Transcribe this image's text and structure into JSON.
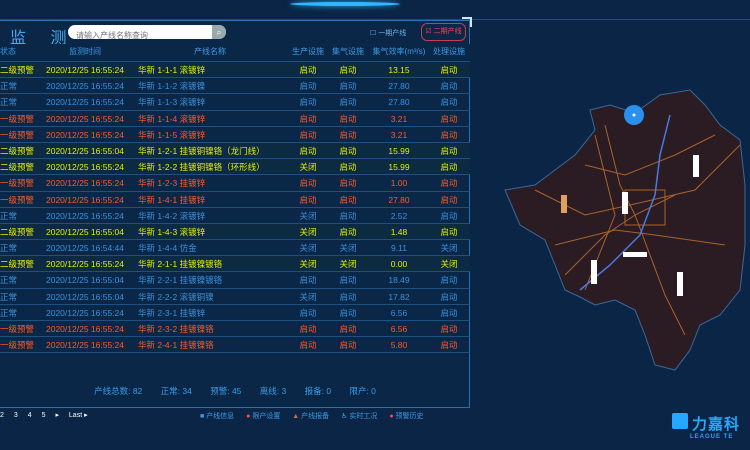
{
  "panel": {
    "title": "监 测",
    "search_placeholder": "请输入产线名称查询",
    "checkbox1": "一期产线",
    "checkbox2": "二期产线"
  },
  "columns": [
    "状态",
    "监测时间",
    "产线名称",
    "生产设施",
    "集气设施",
    "集气效率(m³/s)",
    "处理设施"
  ],
  "rows": [
    {
      "level": "yellow",
      "status": "二级预警",
      "time": "2020/12/25 16:55:24",
      "name": "华新 1-1-1 滚镀锌",
      "prod": "启动",
      "gas": "启动",
      "eff": "13.15",
      "treat": "启动"
    },
    {
      "level": "blue",
      "status": "正常",
      "time": "2020/12/25 16:55:24",
      "name": "华新 1-1-2 滚镀镍",
      "prod": "启动",
      "gas": "启动",
      "eff": "27.80",
      "treat": "启动"
    },
    {
      "level": "blue",
      "status": "正常",
      "time": "2020/12/25 16:55:24",
      "name": "华新 1-1-3 滚镀锌",
      "prod": "启动",
      "gas": "启动",
      "eff": "27.80",
      "treat": "启动"
    },
    {
      "level": "red",
      "status": "一级预警",
      "time": "2020/12/25 16:55:24",
      "name": "华新 1-1-4 滚镀锌",
      "prod": "启动",
      "gas": "启动",
      "eff": "3.21",
      "treat": "启动"
    },
    {
      "level": "red",
      "status": "一级预警",
      "time": "2020/12/25 16:55:24",
      "name": "华新 1-1-5 滚镀锌",
      "prod": "启动",
      "gas": "启动",
      "eff": "3.21",
      "treat": "启动"
    },
    {
      "level": "yellow",
      "status": "二级预警",
      "time": "2020/12/25 16:55:04",
      "name": "华新 1-2-1 挂镀铜镍铬（龙门线）",
      "prod": "启动",
      "gas": "启动",
      "eff": "15.99",
      "treat": "启动"
    },
    {
      "level": "yellow",
      "status": "二级预警",
      "time": "2020/12/25 16:55:24",
      "name": "华新 1-2-2 挂镀铜镍铬（环形线）",
      "prod": "关闭",
      "gas": "启动",
      "eff": "15.99",
      "treat": "启动"
    },
    {
      "level": "red",
      "status": "一级预警",
      "time": "2020/12/25 16:55:24",
      "name": "华新 1-2-3 挂镀锌",
      "prod": "启动",
      "gas": "启动",
      "eff": "1.00",
      "treat": "启动"
    },
    {
      "level": "red",
      "status": "一级预警",
      "time": "2020/12/25 16:55:24",
      "name": "华新 1-4-1 挂镀锌",
      "prod": "启动",
      "gas": "启动",
      "eff": "27.80",
      "treat": "启动"
    },
    {
      "level": "blue",
      "status": "正常",
      "time": "2020/12/25 16:55:24",
      "name": "华新 1-4-2 滚镀锌",
      "prod": "关闭",
      "gas": "启动",
      "eff": "2.52",
      "treat": "启动"
    },
    {
      "level": "yellow",
      "status": "二级预警",
      "time": "2020/12/25 16:55:04",
      "name": "华新 1-4-3 滚镀锌",
      "prod": "关闭",
      "gas": "启动",
      "eff": "1.48",
      "treat": "启动"
    },
    {
      "level": "blue",
      "status": "正常",
      "time": "2020/12/25 16:54:44",
      "name": "华新 1-4-4 仿金",
      "prod": "关闭",
      "gas": "关闭",
      "eff": "9.11",
      "treat": "关闭"
    },
    {
      "level": "yellow",
      "status": "二级预警",
      "time": "2020/12/25 16:55:24",
      "name": "华新 2-1-1 挂镀镍镀铬",
      "prod": "关闭",
      "gas": "关闭",
      "eff": "0.00",
      "treat": "关闭"
    },
    {
      "level": "blue",
      "status": "正常",
      "time": "2020/12/25 16:55:04",
      "name": "华新 2-2-1 挂镀镍镀铬",
      "prod": "启动",
      "gas": "启动",
      "eff": "18.49",
      "treat": "启动"
    },
    {
      "level": "blue",
      "status": "正常",
      "time": "2020/12/25 16:55:04",
      "name": "华新 2-2-2 滚镀铜镍",
      "prod": "关闭",
      "gas": "启动",
      "eff": "17.82",
      "treat": "启动"
    },
    {
      "level": "blue",
      "status": "正常",
      "time": "2020/12/25 16:55:24",
      "name": "华新 2-3-1 挂镀锌",
      "prod": "启动",
      "gas": "启动",
      "eff": "6.56",
      "treat": "启动"
    },
    {
      "level": "red",
      "status": "一级预警",
      "time": "2020/12/25 16:55:24",
      "name": "华新 2-3-2 挂镀镍铬",
      "prod": "启动",
      "gas": "启动",
      "eff": "6.56",
      "treat": "启动"
    },
    {
      "level": "red",
      "status": "一级预警",
      "time": "2020/12/25 16:55:24",
      "name": "华新 2-4-1 挂镀镍铬",
      "prod": "启动",
      "gas": "启动",
      "eff": "5.80",
      "treat": "启动"
    }
  ],
  "summary": {
    "total": "产线总数: 82",
    "normal": "正常: 34",
    "warn": "预警: 45",
    "offline": "离线: 3",
    "standby": "报备: 0",
    "stopped": "限产: 0"
  },
  "pager": [
    "2",
    "3",
    "4",
    "5",
    "▸",
    "Last ▸"
  ],
  "legend": [
    "产线信息",
    "限产设置",
    "产线报备",
    "实时工况",
    "预警历史"
  ],
  "logo": {
    "cn": "力嘉科",
    "en": "LEAGUE TE"
  },
  "colors": {
    "warn2": "#e4f000",
    "warn1": "#ff5a2a",
    "normal": "#3b92db",
    "background": "#0a2546"
  }
}
